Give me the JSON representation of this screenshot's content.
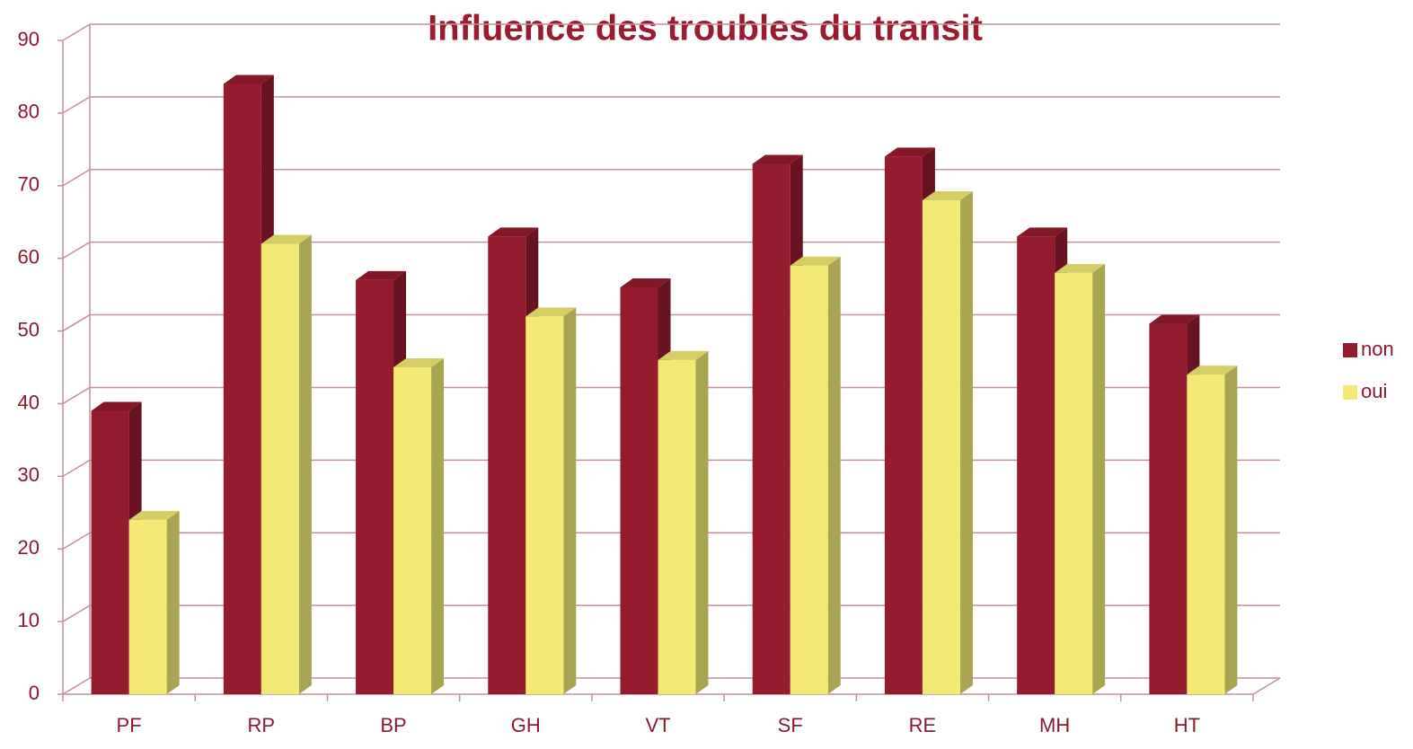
{
  "chart_data": {
    "type": "bar",
    "title": "Influence des troubles du transit",
    "categories": [
      "PF",
      "RP",
      "BP",
      "GH",
      "VT",
      "SF",
      "RE",
      "MH",
      "HT"
    ],
    "series": [
      {
        "name": "non",
        "color": "#951b2f",
        "values": [
          39,
          84,
          57,
          63,
          56,
          73,
          74,
          63,
          51
        ]
      },
      {
        "name": "oui",
        "color": "#f2ea74",
        "values": [
          24,
          62,
          45,
          52,
          46,
          59,
          68,
          58,
          44
        ]
      }
    ],
    "ylim": [
      0,
      90
    ],
    "yticks": [
      0,
      10,
      20,
      30,
      40,
      50,
      60,
      70,
      80,
      90
    ],
    "grid": true,
    "legend": "right"
  }
}
